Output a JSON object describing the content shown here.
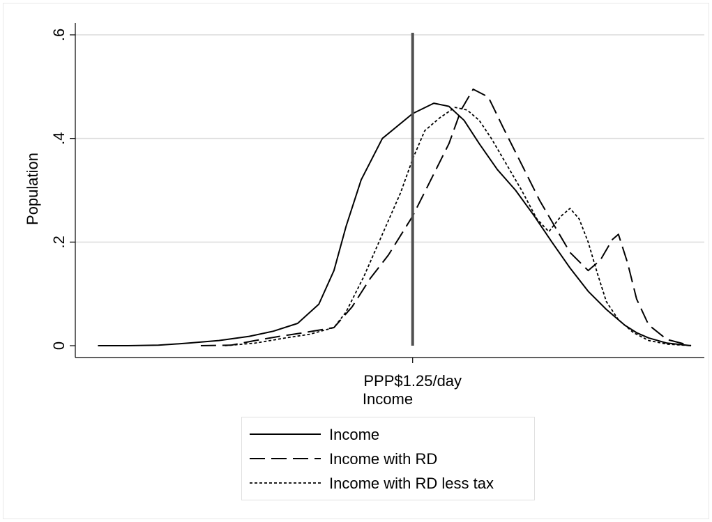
{
  "chart_data": {
    "type": "line",
    "title": "",
    "xlabel": "Income",
    "ylabel": "Population",
    "x_tick_labels": [
      "PPP$1.25/day"
    ],
    "y_ticks": [
      {
        "value": 0,
        "label": "0"
      },
      {
        "value": 0.2,
        "label": ".2"
      },
      {
        "value": 0.4,
        "label": ".4"
      },
      {
        "value": 0.6,
        "label": ".6"
      }
    ],
    "ylim": [
      -0.025,
      0.6
    ],
    "xlim": [
      0,
      100
    ],
    "grid": "horizontal",
    "legend_placement": "bottom",
    "reference_line": {
      "x": 54,
      "color": "#505050"
    },
    "series": [
      {
        "name": "Income",
        "dash": "solid",
        "points": [
          [
            2,
            0.0
          ],
          [
            7,
            0.0
          ],
          [
            12,
            0.001
          ],
          [
            17,
            0.005
          ],
          [
            22,
            0.01
          ],
          [
            27,
            0.018
          ],
          [
            31,
            0.028
          ],
          [
            35,
            0.043
          ],
          [
            38.5,
            0.08
          ],
          [
            41,
            0.145
          ],
          [
            43,
            0.23
          ],
          [
            45.5,
            0.32
          ],
          [
            49,
            0.4
          ],
          [
            54,
            0.448
          ],
          [
            57.5,
            0.468
          ],
          [
            60,
            0.462
          ],
          [
            62.5,
            0.435
          ],
          [
            65,
            0.39
          ],
          [
            68,
            0.34
          ],
          [
            71,
            0.3
          ],
          [
            74,
            0.252
          ],
          [
            77,
            0.2
          ],
          [
            80,
            0.15
          ],
          [
            83,
            0.105
          ],
          [
            86,
            0.07
          ],
          [
            89,
            0.04
          ],
          [
            91,
            0.025
          ],
          [
            93,
            0.015
          ],
          [
            96,
            0.005
          ],
          [
            100,
            0.0
          ]
        ]
      },
      {
        "name": "Income with RD",
        "dash": "long-dash",
        "points": [
          [
            19,
            0.0
          ],
          [
            24,
            0.001
          ],
          [
            28,
            0.01
          ],
          [
            32,
            0.018
          ],
          [
            36,
            0.025
          ],
          [
            41,
            0.035
          ],
          [
            44,
            0.075
          ],
          [
            47,
            0.13
          ],
          [
            50,
            0.175
          ],
          [
            54,
            0.25
          ],
          [
            57,
            0.32
          ],
          [
            60,
            0.39
          ],
          [
            62,
            0.455
          ],
          [
            64,
            0.495
          ],
          [
            66.5,
            0.48
          ],
          [
            69,
            0.42
          ],
          [
            72,
            0.35
          ],
          [
            75,
            0.28
          ],
          [
            78,
            0.22
          ],
          [
            80,
            0.18
          ],
          [
            83,
            0.145
          ],
          [
            85,
            0.165
          ],
          [
            87,
            0.205
          ],
          [
            88,
            0.215
          ],
          [
            89.5,
            0.16
          ],
          [
            91,
            0.09
          ],
          [
            93,
            0.04
          ],
          [
            96,
            0.012
          ],
          [
            100,
            0.0
          ]
        ]
      },
      {
        "name": "Income with RD less tax",
        "dash": "short-dash",
        "points": [
          [
            23,
            0.0
          ],
          [
            28,
            0.005
          ],
          [
            33,
            0.015
          ],
          [
            37,
            0.022
          ],
          [
            41,
            0.035
          ],
          [
            43,
            0.065
          ],
          [
            46,
            0.135
          ],
          [
            49,
            0.215
          ],
          [
            52,
            0.295
          ],
          [
            54,
            0.36
          ],
          [
            56,
            0.415
          ],
          [
            58.5,
            0.44
          ],
          [
            61,
            0.46
          ],
          [
            63,
            0.455
          ],
          [
            65,
            0.435
          ],
          [
            67,
            0.4
          ],
          [
            69.5,
            0.35
          ],
          [
            72,
            0.3
          ],
          [
            74.5,
            0.245
          ],
          [
            76.5,
            0.22
          ],
          [
            78.5,
            0.25
          ],
          [
            80,
            0.265
          ],
          [
            81.5,
            0.245
          ],
          [
            83,
            0.2
          ],
          [
            84.5,
            0.14
          ],
          [
            86,
            0.085
          ],
          [
            88,
            0.05
          ],
          [
            90.5,
            0.025
          ],
          [
            93,
            0.01
          ],
          [
            96,
            0.003
          ],
          [
            100,
            0.0
          ]
        ]
      }
    ]
  }
}
